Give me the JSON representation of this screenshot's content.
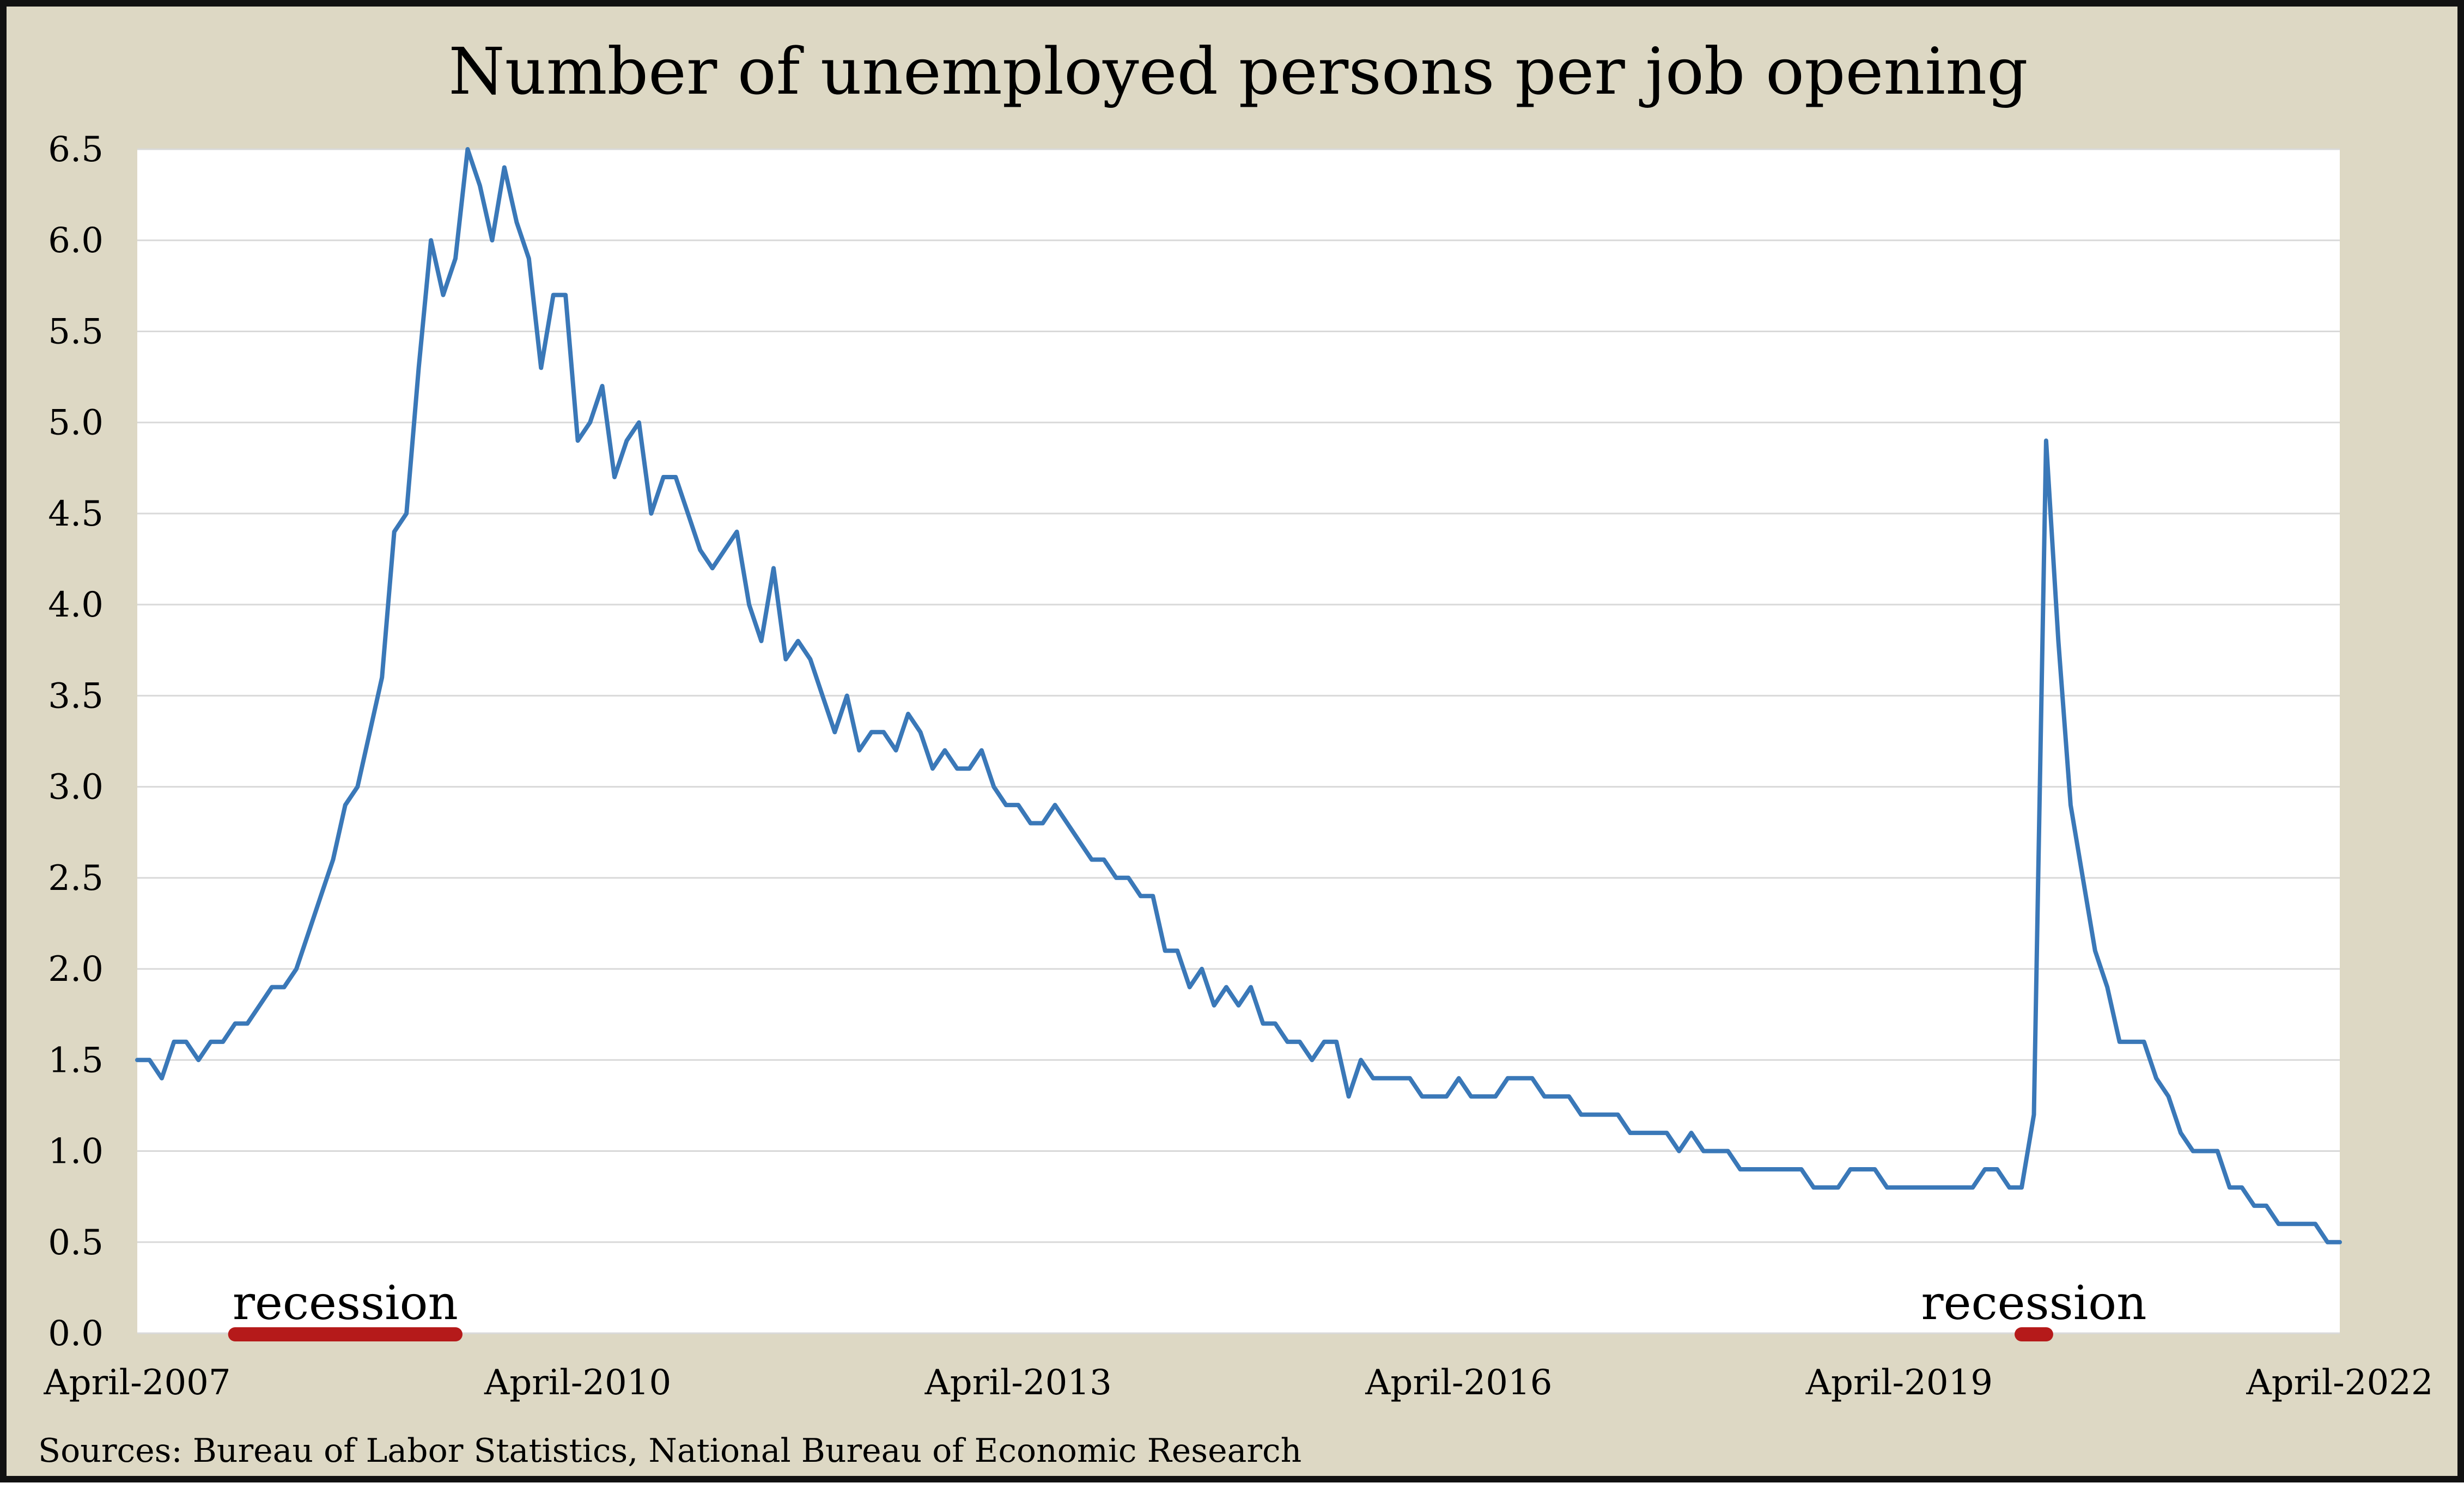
{
  "chart_data": {
    "type": "line",
    "title": "Number of unemployed persons per job opening",
    "source": "Sources: Bureau of Labor Statistics, National Bureau of Economic Research",
    "xlabel": "",
    "ylabel": "",
    "ylim": [
      0,
      6.5
    ],
    "y_ticks": [
      "0.0",
      "0.5",
      "1.0",
      "1.5",
      "2.0",
      "2.5",
      "3.0",
      "3.5",
      "4.0",
      "4.5",
      "5.0",
      "5.5",
      "6.0",
      "6.5"
    ],
    "x_range": [
      "2007-04",
      "2022-04"
    ],
    "x_ticks": [
      {
        "date": "2007-04",
        "label": "April-2007"
      },
      {
        "date": "2010-04",
        "label": "April-2010"
      },
      {
        "date": "2013-04",
        "label": "April-2013"
      },
      {
        "date": "2016-04",
        "label": "April-2016"
      },
      {
        "date": "2019-04",
        "label": "April-2019"
      },
      {
        "date": "2022-04",
        "label": "April-2022"
      }
    ],
    "grid": true,
    "legend": "none",
    "line_color": "#3a78b8",
    "recession_color": "#b51a1a",
    "annotations": [
      {
        "label": "recession",
        "start": "2007-12",
        "end": "2009-06"
      },
      {
        "label": "recession",
        "start": "2020-02",
        "end": "2020-04"
      }
    ],
    "series": [
      {
        "values": [
          [
            "2007-04",
            1.5
          ],
          [
            "2007-05",
            1.5
          ],
          [
            "2007-06",
            1.4
          ],
          [
            "2007-07",
            1.6
          ],
          [
            "2007-08",
            1.6
          ],
          [
            "2007-09",
            1.5
          ],
          [
            "2007-10",
            1.6
          ],
          [
            "2007-11",
            1.6
          ],
          [
            "2007-12",
            1.7
          ],
          [
            "2008-01",
            1.7
          ],
          [
            "2008-02",
            1.8
          ],
          [
            "2008-03",
            1.9
          ],
          [
            "2008-04",
            1.9
          ],
          [
            "2008-05",
            2.0
          ],
          [
            "2008-06",
            2.2
          ],
          [
            "2008-07",
            2.4
          ],
          [
            "2008-08",
            2.6
          ],
          [
            "2008-09",
            2.9
          ],
          [
            "2008-10",
            3.0
          ],
          [
            "2008-11",
            3.3
          ],
          [
            "2008-12",
            3.6
          ],
          [
            "2009-01",
            4.4
          ],
          [
            "2009-02",
            4.5
          ],
          [
            "2009-03",
            5.3
          ],
          [
            "2009-04",
            6.0
          ],
          [
            "2009-05",
            5.7
          ],
          [
            "2009-06",
            5.9
          ],
          [
            "2009-07",
            6.5
          ],
          [
            "2009-08",
            6.3
          ],
          [
            "2009-09",
            6.0
          ],
          [
            "2009-10",
            6.4
          ],
          [
            "2009-11",
            6.1
          ],
          [
            "2009-12",
            5.9
          ],
          [
            "2010-01",
            5.3
          ],
          [
            "2010-02",
            5.7
          ],
          [
            "2010-03",
            5.7
          ],
          [
            "2010-04",
            4.9
          ],
          [
            "2010-05",
            5.0
          ],
          [
            "2010-06",
            5.2
          ],
          [
            "2010-07",
            4.7
          ],
          [
            "2010-08",
            4.9
          ],
          [
            "2010-09",
            5.0
          ],
          [
            "2010-10",
            4.5
          ],
          [
            "2010-11",
            4.7
          ],
          [
            "2010-12",
            4.7
          ],
          [
            "2011-01",
            4.5
          ],
          [
            "2011-02",
            4.3
          ],
          [
            "2011-03",
            4.2
          ],
          [
            "2011-04",
            4.3
          ],
          [
            "2011-05",
            4.4
          ],
          [
            "2011-06",
            4.0
          ],
          [
            "2011-07",
            3.8
          ],
          [
            "2011-08",
            4.2
          ],
          [
            "2011-09",
            3.7
          ],
          [
            "2011-10",
            3.8
          ],
          [
            "2011-11",
            3.7
          ],
          [
            "2011-12",
            3.5
          ],
          [
            "2012-01",
            3.3
          ],
          [
            "2012-02",
            3.5
          ],
          [
            "2012-03",
            3.2
          ],
          [
            "2012-04",
            3.3
          ],
          [
            "2012-05",
            3.3
          ],
          [
            "2012-06",
            3.2
          ],
          [
            "2012-07",
            3.4
          ],
          [
            "2012-08",
            3.3
          ],
          [
            "2012-09",
            3.1
          ],
          [
            "2012-10",
            3.2
          ],
          [
            "2012-11",
            3.1
          ],
          [
            "2012-12",
            3.1
          ],
          [
            "2013-01",
            3.2
          ],
          [
            "2013-02",
            3.0
          ],
          [
            "2013-03",
            2.9
          ],
          [
            "2013-04",
            2.9
          ],
          [
            "2013-05",
            2.8
          ],
          [
            "2013-06",
            2.8
          ],
          [
            "2013-07",
            2.9
          ],
          [
            "2013-08",
            2.8
          ],
          [
            "2013-09",
            2.7
          ],
          [
            "2013-10",
            2.6
          ],
          [
            "2013-11",
            2.6
          ],
          [
            "2013-12",
            2.5
          ],
          [
            "2014-01",
            2.5
          ],
          [
            "2014-02",
            2.4
          ],
          [
            "2014-03",
            2.4
          ],
          [
            "2014-04",
            2.1
          ],
          [
            "2014-05",
            2.1
          ],
          [
            "2014-06",
            1.9
          ],
          [
            "2014-07",
            2.0
          ],
          [
            "2014-08",
            1.8
          ],
          [
            "2014-09",
            1.9
          ],
          [
            "2014-10",
            1.8
          ],
          [
            "2014-11",
            1.9
          ],
          [
            "2014-12",
            1.7
          ],
          [
            "2015-01",
            1.7
          ],
          [
            "2015-02",
            1.6
          ],
          [
            "2015-03",
            1.6
          ],
          [
            "2015-04",
            1.5
          ],
          [
            "2015-05",
            1.6
          ],
          [
            "2015-06",
            1.6
          ],
          [
            "2015-07",
            1.3
          ],
          [
            "2015-08",
            1.5
          ],
          [
            "2015-09",
            1.4
          ],
          [
            "2015-10",
            1.4
          ],
          [
            "2015-11",
            1.4
          ],
          [
            "2015-12",
            1.4
          ],
          [
            "2016-01",
            1.3
          ],
          [
            "2016-02",
            1.3
          ],
          [
            "2016-03",
            1.3
          ],
          [
            "2016-04",
            1.4
          ],
          [
            "2016-05",
            1.3
          ],
          [
            "2016-06",
            1.3
          ],
          [
            "2016-07",
            1.3
          ],
          [
            "2016-08",
            1.4
          ],
          [
            "2016-09",
            1.4
          ],
          [
            "2016-10",
            1.4
          ],
          [
            "2016-11",
            1.3
          ],
          [
            "2016-12",
            1.3
          ],
          [
            "2017-01",
            1.3
          ],
          [
            "2017-02",
            1.2
          ],
          [
            "2017-03",
            1.2
          ],
          [
            "2017-04",
            1.2
          ],
          [
            "2017-05",
            1.2
          ],
          [
            "2017-06",
            1.1
          ],
          [
            "2017-07",
            1.1
          ],
          [
            "2017-08",
            1.1
          ],
          [
            "2017-09",
            1.1
          ],
          [
            "2017-10",
            1.0
          ],
          [
            "2017-11",
            1.1
          ],
          [
            "2017-12",
            1.0
          ],
          [
            "2018-01",
            1.0
          ],
          [
            "2018-02",
            1.0
          ],
          [
            "2018-03",
            0.9
          ],
          [
            "2018-04",
            0.9
          ],
          [
            "2018-05",
            0.9
          ],
          [
            "2018-06",
            0.9
          ],
          [
            "2018-07",
            0.9
          ],
          [
            "2018-08",
            0.9
          ],
          [
            "2018-09",
            0.8
          ],
          [
            "2018-10",
            0.8
          ],
          [
            "2018-11",
            0.8
          ],
          [
            "2018-12",
            0.9
          ],
          [
            "2019-01",
            0.9
          ],
          [
            "2019-02",
            0.9
          ],
          [
            "2019-03",
            0.8
          ],
          [
            "2019-04",
            0.8
          ],
          [
            "2019-05",
            0.8
          ],
          [
            "2019-06",
            0.8
          ],
          [
            "2019-07",
            0.8
          ],
          [
            "2019-08",
            0.8
          ],
          [
            "2019-09",
            0.8
          ],
          [
            "2019-10",
            0.8
          ],
          [
            "2019-11",
            0.9
          ],
          [
            "2019-12",
            0.9
          ],
          [
            "2020-01",
            0.8
          ],
          [
            "2020-02",
            0.8
          ],
          [
            "2020-03",
            1.2
          ],
          [
            "2020-04",
            4.9
          ],
          [
            "2020-05",
            3.8
          ],
          [
            "2020-06",
            2.9
          ],
          [
            "2020-07",
            2.5
          ],
          [
            "2020-08",
            2.1
          ],
          [
            "2020-09",
            1.9
          ],
          [
            "2020-10",
            1.6
          ],
          [
            "2020-11",
            1.6
          ],
          [
            "2020-12",
            1.6
          ],
          [
            "2021-01",
            1.4
          ],
          [
            "2021-02",
            1.3
          ],
          [
            "2021-03",
            1.1
          ],
          [
            "2021-04",
            1.0
          ],
          [
            "2021-05",
            1.0
          ],
          [
            "2021-06",
            1.0
          ],
          [
            "2021-07",
            0.8
          ],
          [
            "2021-08",
            0.8
          ],
          [
            "2021-09",
            0.7
          ],
          [
            "2021-10",
            0.7
          ],
          [
            "2021-11",
            0.6
          ],
          [
            "2021-12",
            0.6
          ],
          [
            "2022-01",
            0.6
          ],
          [
            "2022-02",
            0.6
          ],
          [
            "2022-03",
            0.5
          ],
          [
            "2022-04",
            0.5
          ]
        ]
      }
    ]
  }
}
